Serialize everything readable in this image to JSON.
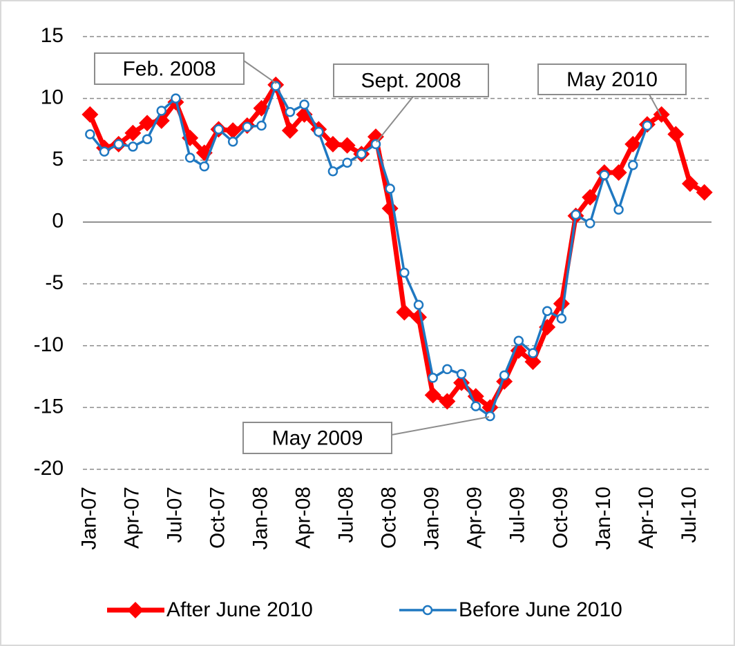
{
  "chart_data": {
    "type": "line",
    "categories": [
      "Jan-07",
      null,
      null,
      "Apr-07",
      null,
      null,
      "Jul-07",
      null,
      null,
      "Oct-07",
      null,
      null,
      "Jan-08",
      null,
      null,
      "Apr-08",
      null,
      null,
      "Jul-08",
      null,
      null,
      "Oct-08",
      null,
      null,
      "Jan-09",
      null,
      null,
      "Apr-09",
      null,
      null,
      "Jul-09",
      null,
      null,
      "Oct-09",
      null,
      null,
      "Jan-10",
      null,
      null,
      "Apr-10",
      null,
      null,
      "Jul-10",
      null
    ],
    "series": [
      {
        "name": "After June 2010",
        "color": "#ff0000",
        "marker": "diamond",
        "values": [
          8.7,
          6.0,
          6.3,
          7.2,
          8.0,
          8.2,
          9.7,
          6.8,
          5.6,
          7.5,
          7.4,
          7.8,
          9.2,
          11.1,
          7.4,
          8.7,
          7.5,
          6.3,
          6.2,
          5.5,
          6.9,
          1.1,
          -7.3,
          -7.7,
          -14.0,
          -14.5,
          -13.0,
          -14.1,
          -15.0,
          -12.9,
          -10.4,
          -11.3,
          -8.5,
          -6.6,
          0.5,
          2.0,
          4.0,
          4.0,
          6.3,
          7.9,
          8.7,
          7.1,
          3.1,
          2.4
        ]
      },
      {
        "name": "Before June 2010",
        "color": "#1f78c1",
        "marker": "circle",
        "values": [
          7.1,
          5.7,
          6.3,
          6.1,
          6.7,
          9.0,
          10.0,
          5.2,
          4.5,
          7.5,
          6.5,
          7.7,
          7.8,
          11.0,
          8.9,
          9.5,
          7.3,
          4.1,
          4.8,
          5.5,
          6.3,
          2.7,
          -4.1,
          -6.7,
          -12.6,
          -11.9,
          -12.3,
          -14.9,
          -15.7,
          -12.4,
          -9.6,
          -10.6,
          -7.2,
          -7.8,
          0.6,
          -0.1,
          3.8,
          1.0,
          4.6,
          7.8,
          null,
          null,
          null,
          null
        ]
      }
    ],
    "annotations": [
      "Feb. 2008",
      "Sept. 2008",
      "May 2010",
      "May 2009"
    ],
    "ylim": [
      -20,
      15
    ],
    "yticks": [
      -20,
      -15,
      -10,
      -5,
      0,
      5,
      10,
      15
    ],
    "grid": true,
    "legend": "bottom"
  }
}
